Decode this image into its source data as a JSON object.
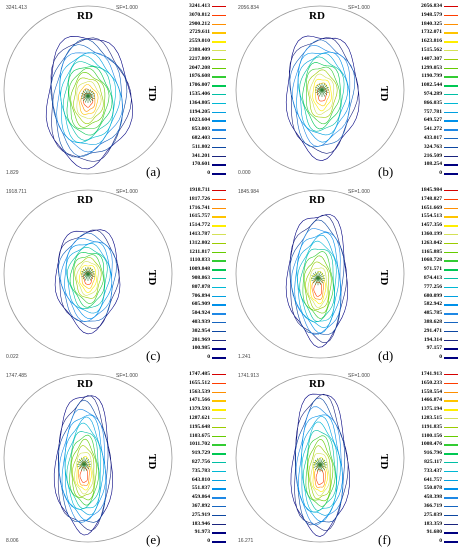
{
  "labels": {
    "rd": "RD",
    "td": "TD",
    "sf": "SF=1.000"
  },
  "colors": [
    "#d50000",
    "#ff3d00",
    "#ff8f00",
    "#ffc400",
    "#ffee00",
    "#d4e157",
    "#9ccc00",
    "#66cc00",
    "#33cc33",
    "#00c853",
    "#00bfa5",
    "#00b8d4",
    "#00a0e0",
    "#0091ea",
    "#1e88e5",
    "#1565c0",
    "#0d47a1",
    "#1a237e",
    "#000080"
  ],
  "panels": [
    {
      "label": "(a)",
      "max_text": "3241.413",
      "min_text": "1.829",
      "values": [
        "3241.413",
        "3070.812",
        "2900.212",
        "2729.611",
        "2559.010",
        "2388.409",
        "2217.809",
        "2047.208",
        "1876.608",
        "1706.007",
        "1535.406",
        "1364.805",
        "1194.205",
        "1023.604",
        "853.003",
        "682.403",
        "511.802",
        "341.201",
        "170.601",
        "0"
      ]
    },
    {
      "label": "(b)",
      "max_text": "2056.834",
      "min_text": "0.000",
      "values": [
        "2056.834",
        "1948.579",
        "1840.325",
        "1732.071",
        "1623.816",
        "1515.562",
        "1407.307",
        "1299.053",
        "1190.799",
        "1082.544",
        "974.289",
        "866.035",
        "757.781",
        "649.527",
        "541.272",
        "433.017",
        "324.763",
        "216.509",
        "108.254",
        "0"
      ]
    },
    {
      "label": "(c)",
      "max_text": "1918.711",
      "min_text": "0.022",
      "values": [
        "1918.711",
        "1817.726",
        "1716.741",
        "1615.757",
        "1514.772",
        "1413.787",
        "1312.802",
        "1211.817",
        "1110.833",
        "1009.848",
        "908.863",
        "807.878",
        "706.894",
        "605.909",
        "504.924",
        "403.939",
        "302.954",
        "201.969",
        "100.985",
        "0"
      ]
    },
    {
      "label": "(d)",
      "max_text": "1845.984",
      "min_text": "1.241",
      "values": [
        "1845.984",
        "1748.827",
        "1651.669",
        "1554.513",
        "1457.356",
        "1360.199",
        "1263.042",
        "1165.885",
        "1068.728",
        "971.571",
        "874.413",
        "777.256",
        "680.099",
        "582.942",
        "485.785",
        "388.628",
        "291.471",
        "194.314",
        "97.157",
        "0"
      ]
    },
    {
      "label": "(e)",
      "max_text": "1747.485",
      "min_text": "8.006",
      "values": [
        "1747.485",
        "1655.512",
        "1563.539",
        "1471.566",
        "1379.593",
        "1287.621",
        "1195.648",
        "1103.675",
        "1011.702",
        "919.729",
        "827.756",
        "735.783",
        "643.810",
        "551.837",
        "459.864",
        "367.892",
        "275.919",
        "183.946",
        "91.973",
        "0"
      ]
    },
    {
      "label": "(f)",
      "max_text": "1741.913",
      "min_text": "16.271",
      "values": [
        "1741.913",
        "1650.233",
        "1558.554",
        "1466.874",
        "1375.194",
        "1283.515",
        "1191.835",
        "1100.156",
        "1008.476",
        "916.796",
        "825.117",
        "733.437",
        "641.757",
        "550.078",
        "458.398",
        "366.719",
        "275.039",
        "183.359",
        "91.680",
        "0"
      ]
    }
  ]
}
